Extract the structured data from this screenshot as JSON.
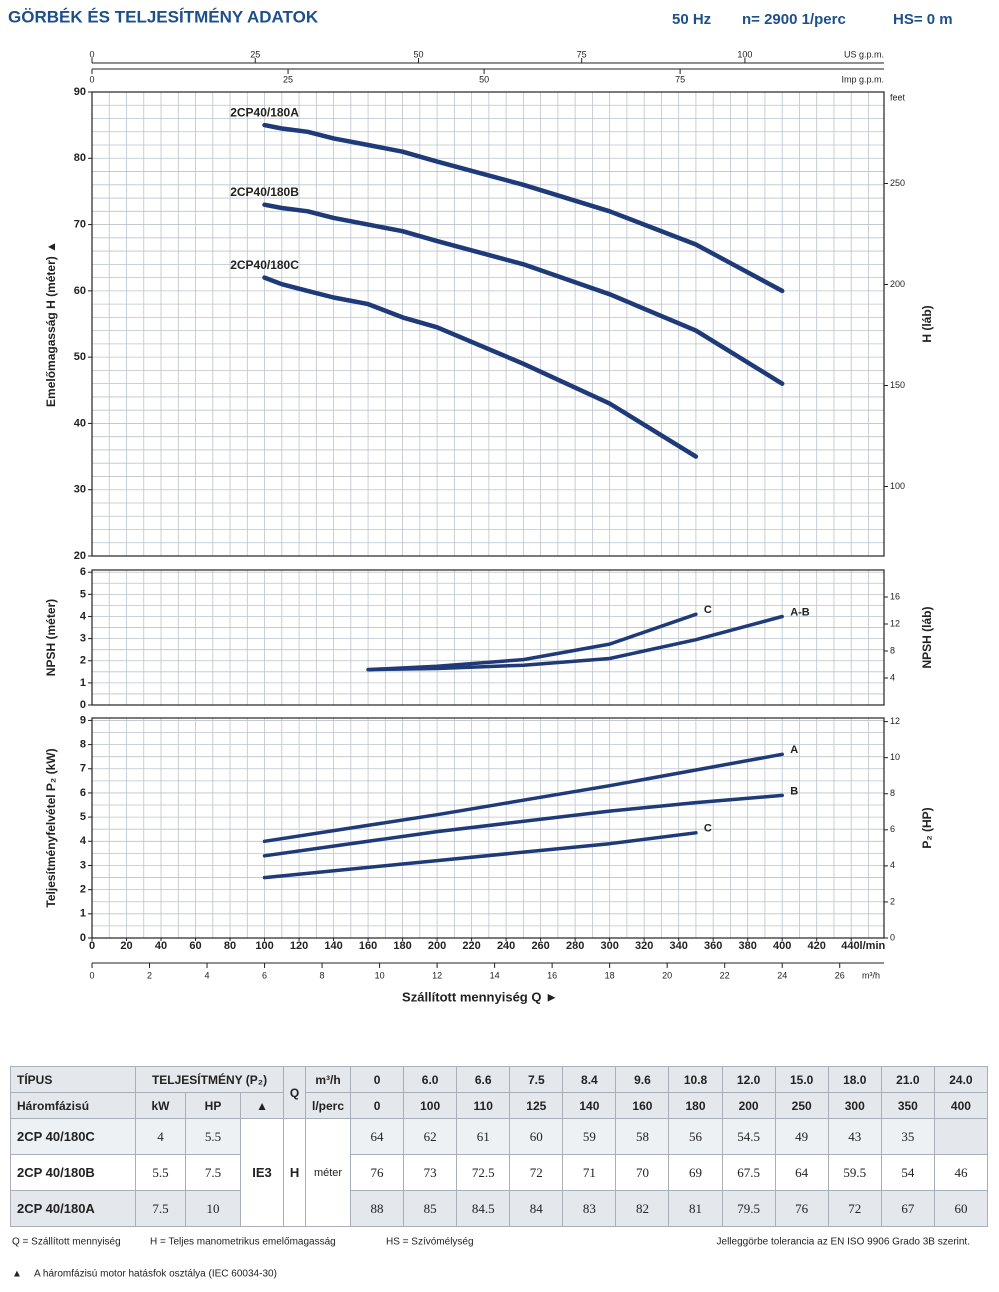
{
  "header": {
    "title": "GÖRBÉK ÉS TELJESÍTMÉNY ADATOK",
    "freq": "50 Hz",
    "speed": "n= 2900 1/perc",
    "hs": "HS= 0 m"
  },
  "chart_data": [
    {
      "type": "line",
      "x": [
        100,
        110,
        125,
        140,
        160,
        180,
        200,
        250,
        300,
        350,
        400
      ],
      "series": [
        {
          "name": "2CP40/180A",
          "color": "#1f3a78",
          "values": [
            85,
            84.5,
            84,
            83,
            82,
            81,
            79.5,
            76,
            72,
            67,
            60
          ]
        },
        {
          "name": "2CP40/180B",
          "color": "#1f3a78",
          "values": [
            73,
            72.5,
            72,
            71,
            70,
            69,
            67.5,
            64,
            59.5,
            54,
            46
          ]
        },
        {
          "name": "2CP40/180C",
          "color": "#1f3a78",
          "values": [
            62,
            61,
            60,
            59,
            58,
            56,
            54.5,
            49,
            43,
            35,
            null
          ]
        }
      ],
      "label_position": "start",
      "xlim": [
        0,
        459
      ],
      "ylim": [
        20,
        90
      ],
      "yticks": [
        20,
        30,
        40,
        50,
        60,
        70,
        80,
        90
      ],
      "y2lim": [
        65.6,
        295.3
      ],
      "y2ticks": [
        100,
        150,
        200,
        250
      ],
      "y_label": "Emelőmagasság H (méter) ▲",
      "y2_label": "H (láb)",
      "y2_unit": "feet",
      "grid": true,
      "minor_grid": {
        "x": 10,
        "y": 2
      },
      "top_axes": [
        {
          "label": "US g.p.m.",
          "xlim": [
            0,
            121.3
          ],
          "xticks": [
            0,
            25,
            50,
            75,
            100
          ]
        },
        {
          "label": "Imp g.p.m.",
          "xlim": [
            0,
            101
          ],
          "xticks": [
            0,
            25,
            50,
            75
          ]
        }
      ]
    },
    {
      "type": "line",
      "x": [
        160,
        200,
        250,
        300,
        350,
        400
      ],
      "series": [
        {
          "name": "C",
          "color": "#1f3a78",
          "values": [
            1.6,
            1.75,
            2.05,
            2.75,
            4.1,
            null
          ]
        },
        {
          "name": "A-B",
          "color": "#1f3a78",
          "values": [
            1.6,
            1.65,
            1.8,
            2.1,
            2.95,
            4.0
          ]
        }
      ],
      "label_position": "end",
      "xlim": [
        0,
        459
      ],
      "ylim": [
        0,
        6.1
      ],
      "yticks": [
        0,
        1,
        2,
        3,
        4,
        5,
        6
      ],
      "y2lim": [
        0,
        20
      ],
      "y2ticks": [
        4,
        8,
        12,
        16
      ],
      "y_label": "NPSH (méter)",
      "y2_label": "NPSH (láb)",
      "grid": true,
      "minor_grid": {
        "x": 10,
        "y": 0.5
      }
    },
    {
      "type": "line",
      "x": [
        100,
        200,
        300,
        350,
        400
      ],
      "series": [
        {
          "name": "A",
          "color": "#1f3a78",
          "values": [
            4.0,
            5.1,
            6.3,
            6.95,
            7.6
          ]
        },
        {
          "name": "B",
          "color": "#1f3a78",
          "values": [
            3.4,
            4.4,
            5.25,
            5.6,
            5.9
          ]
        },
        {
          "name": "C",
          "color": "#1f3a78",
          "values": [
            2.5,
            3.2,
            3.9,
            4.35,
            null
          ]
        }
      ],
      "label_position": "end",
      "xlim": [
        0,
        459
      ],
      "ylim": [
        0,
        9.1
      ],
      "yticks": [
        0,
        1,
        2,
        3,
        4,
        5,
        6,
        7,
        8,
        9
      ],
      "y2lim": [
        0,
        12.2
      ],
      "y2ticks": [
        0,
        2,
        4,
        6,
        8,
        10,
        12
      ],
      "y_label": "Teljesítményfelvétel P₂ (kW)",
      "y2_label": "P₂ (HP)",
      "grid": true,
      "minor_grid": {
        "x": 10,
        "y": 0.5
      },
      "xticks": [
        0,
        20,
        40,
        60,
        80,
        100,
        120,
        140,
        160,
        180,
        200,
        220,
        240,
        260,
        280,
        300,
        320,
        340,
        360,
        380,
        400,
        420,
        {
          "value": 440,
          "label": "440l/min"
        }
      ],
      "bottom_axis": {
        "unit": "m³/h",
        "xlim": [
          0,
          27.54
        ],
        "xticks": [
          0,
          2,
          4,
          6,
          8,
          10,
          12,
          14,
          16,
          18,
          20,
          22,
          24,
          26
        ]
      },
      "x_label": "Szállított mennyiség Q ►"
    }
  ],
  "table": {
    "header": {
      "type": "TÍPUS",
      "power": "TELJESÍTMÉNY (P₂)",
      "q": "Q",
      "m3h": "m³/h",
      "phase": "Háromfázisú",
      "kw": "kW",
      "hp": "HP",
      "ie_mark": "▲",
      "lperc": "l/perc",
      "h": "H",
      "meter": "méter",
      "class": "IE3"
    },
    "q_m3h": [
      "0",
      "6.0",
      "6.6",
      "7.5",
      "8.4",
      "9.6",
      "10.8",
      "12.0",
      "15.0",
      "18.0",
      "21.0",
      "24.0"
    ],
    "q_lmin": [
      0,
      100,
      110,
      125,
      140,
      160,
      180,
      200,
      250,
      300,
      350,
      400
    ],
    "rows": [
      {
        "name": "2CP 40/180C",
        "kw": 4,
        "hp": 5.5,
        "h": [
          64,
          62,
          61,
          60,
          59,
          58,
          56,
          54.5,
          49,
          43,
          35,
          null
        ]
      },
      {
        "name": "2CP 40/180B",
        "kw": 5.5,
        "hp": 7.5,
        "h": [
          76,
          73,
          72.5,
          72,
          71,
          70,
          69,
          67.5,
          64,
          59.5,
          54,
          46
        ]
      },
      {
        "name": "2CP 40/180A",
        "kw": 7.5,
        "hp": 10,
        "h": [
          88,
          85,
          84.5,
          84,
          83,
          82,
          81,
          79.5,
          76,
          72,
          67,
          60
        ]
      }
    ]
  },
  "footnotes": {
    "q": "Q = Szállított mennyiség",
    "h": "H = Teljes manometrikus emelőmagasság",
    "hs": "HS = Szívómélység",
    "tolerance": "Jelleggörbe tolerancia  az EN ISO 9906 Grado 3B szerint.",
    "ie_mark": "▲",
    "ie_note": "A háromfázisú motor hatásfok osztálya  (IEC 60034-30)"
  }
}
